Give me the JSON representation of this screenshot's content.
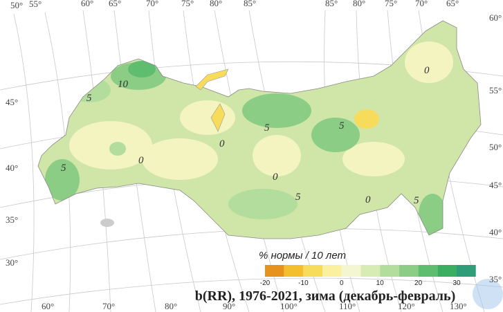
{
  "map": {
    "top_labels": [
      "50°",
      "55°",
      "60°",
      "65°",
      "70°",
      "75°",
      "80°",
      "85°",
      "85°",
      "80°",
      "75°",
      "70°",
      "65°"
    ],
    "left_labels": [
      "45°",
      "40°",
      "35°",
      "30°"
    ],
    "right_labels": [
      "60°",
      "55°",
      "50°",
      "45°",
      "40°",
      "35°"
    ],
    "bottom_labels": [
      "60°",
      "70°",
      "80°",
      "90°",
      "100°",
      "110°",
      "120°",
      "130°"
    ],
    "contour_labels": [
      "10",
      "5",
      "5",
      "0",
      "0",
      "5",
      "5",
      "0",
      "5",
      "0",
      "5",
      "0"
    ],
    "legend": {
      "title": "% нормы / 10 лет",
      "ticks": [
        -20,
        -10,
        0,
        10,
        20,
        30
      ],
      "colors": [
        "#e8921e",
        "#f4bf2e",
        "#f7dc5c",
        "#faf0a0",
        "#f4f6d2",
        "#d6ecb4",
        "#b2dd9c",
        "#8ccd86",
        "#5fbd70",
        "#3cae62",
        "#2f9d78"
      ]
    },
    "caption": "b(RR), 1976-2021, зима (декабрь-февраль)"
  }
}
